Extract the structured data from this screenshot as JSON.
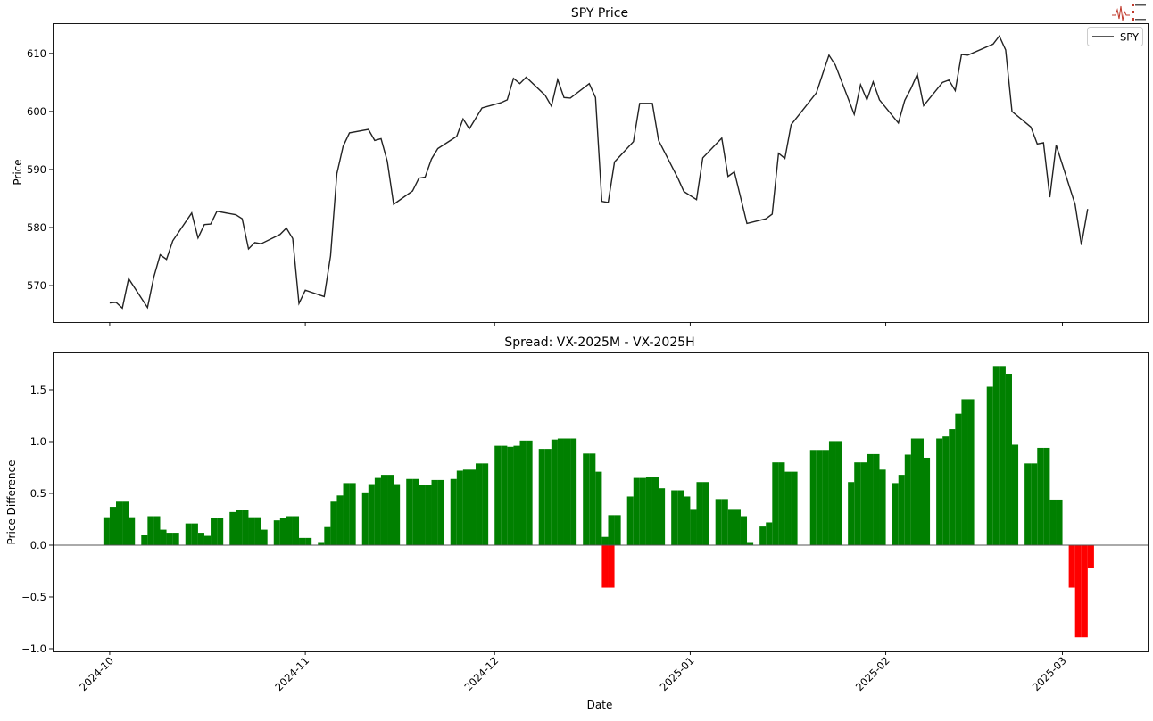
{
  "chart_data": [
    {
      "type": "line",
      "title": "SPY Price",
      "xlabel": "",
      "ylabel": "Price",
      "xlim": [
        "2024-09-21T23:00",
        "2025-03-14T12:00"
      ],
      "ylim": [
        563.7,
        615.2
      ],
      "yticks": [
        570,
        580,
        590,
        600,
        610
      ],
      "grid": false,
      "legend": {
        "position": "top-right",
        "entries": [
          "SPY"
        ]
      },
      "line_color": "#222222",
      "series": [
        {
          "name": "SPY",
          "points": [
            [
              "2024-10-01",
              567.0
            ],
            [
              "2024-10-02",
              567.1
            ],
            [
              "2024-10-03",
              566.1
            ],
            [
              "2024-10-04",
              571.2
            ],
            [
              "2024-10-07",
              566.2
            ],
            [
              "2024-10-08",
              571.5
            ],
            [
              "2024-10-09",
              575.3
            ],
            [
              "2024-10-10",
              574.5
            ],
            [
              "2024-10-11",
              577.7
            ],
            [
              "2024-10-14",
              582.5
            ],
            [
              "2024-10-15",
              578.2
            ],
            [
              "2024-10-16",
              580.5
            ],
            [
              "2024-10-17",
              580.6
            ],
            [
              "2024-10-18",
              582.8
            ],
            [
              "2024-10-21",
              582.2
            ],
            [
              "2024-10-22",
              581.5
            ],
            [
              "2024-10-23",
              576.3
            ],
            [
              "2024-10-24",
              577.4
            ],
            [
              "2024-10-25",
              577.2
            ],
            [
              "2024-10-28",
              578.8
            ],
            [
              "2024-10-29",
              579.9
            ],
            [
              "2024-10-30",
              578.1
            ],
            [
              "2024-10-31",
              566.9
            ],
            [
              "2024-11-01",
              569.2
            ],
            [
              "2024-11-04",
              568.1
            ],
            [
              "2024-11-05",
              575.1
            ],
            [
              "2024-11-06",
              589.3
            ],
            [
              "2024-11-07",
              594.0
            ],
            [
              "2024-11-08",
              596.3
            ],
            [
              "2024-11-11",
              596.9
            ],
            [
              "2024-11-12",
              595.0
            ],
            [
              "2024-11-13",
              595.3
            ],
            [
              "2024-11-14",
              591.4
            ],
            [
              "2024-11-15",
              584.0
            ],
            [
              "2024-11-18",
              586.3
            ],
            [
              "2024-11-19",
              588.5
            ],
            [
              "2024-11-20",
              588.7
            ],
            [
              "2024-11-21",
              591.8
            ],
            [
              "2024-11-22",
              593.6
            ],
            [
              "2024-11-25",
              595.7
            ],
            [
              "2024-11-26",
              598.7
            ],
            [
              "2024-11-27",
              597.0
            ],
            [
              "2024-11-29",
              600.6
            ],
            [
              "2024-12-02",
              601.5
            ],
            [
              "2024-12-03",
              602.0
            ],
            [
              "2024-12-04",
              605.7
            ],
            [
              "2024-12-05",
              604.8
            ],
            [
              "2024-12-06",
              605.9
            ],
            [
              "2024-12-09",
              602.8
            ],
            [
              "2024-12-10",
              600.9
            ],
            [
              "2024-12-11",
              605.5
            ],
            [
              "2024-12-12",
              602.4
            ],
            [
              "2024-12-13",
              602.3
            ],
            [
              "2024-12-16",
              604.8
            ],
            [
              "2024-12-17",
              602.4
            ],
            [
              "2024-12-18",
              584.5
            ],
            [
              "2024-12-19",
              584.3
            ],
            [
              "2024-12-20",
              591.3
            ],
            [
              "2024-12-23",
              594.8
            ],
            [
              "2024-12-24",
              601.4
            ],
            [
              "2024-12-26",
              601.4
            ],
            [
              "2024-12-27",
              595.0
            ],
            [
              "2024-12-30",
              588.6
            ],
            [
              "2024-12-31",
              586.2
            ],
            [
              "2025-01-02",
              584.8
            ],
            [
              "2025-01-03",
              592.0
            ],
            [
              "2025-01-06",
              595.4
            ],
            [
              "2025-01-07",
              588.8
            ],
            [
              "2025-01-08",
              589.6
            ],
            [
              "2025-01-10",
              580.7
            ],
            [
              "2025-01-13",
              581.5
            ],
            [
              "2025-01-14",
              582.3
            ],
            [
              "2025-01-15",
              592.8
            ],
            [
              "2025-01-16",
              591.9
            ],
            [
              "2025-01-17",
              597.7
            ],
            [
              "2025-01-21",
              603.2
            ],
            [
              "2025-01-22",
              606.5
            ],
            [
              "2025-01-23",
              609.7
            ],
            [
              "2025-01-24",
              608.0
            ],
            [
              "2025-01-27",
              599.5
            ],
            [
              "2025-01-28",
              604.6
            ],
            [
              "2025-01-29",
              602.0
            ],
            [
              "2025-01-30",
              605.1
            ],
            [
              "2025-01-31",
              602.0
            ],
            [
              "2025-02-03",
              598.0
            ],
            [
              "2025-02-04",
              601.9
            ],
            [
              "2025-02-05",
              604.0
            ],
            [
              "2025-02-06",
              606.4
            ],
            [
              "2025-02-07",
              601.0
            ],
            [
              "2025-02-10",
              605.0
            ],
            [
              "2025-02-11",
              605.4
            ],
            [
              "2025-02-12",
              603.6
            ],
            [
              "2025-02-13",
              609.8
            ],
            [
              "2025-02-14",
              609.7
            ],
            [
              "2025-02-18",
              611.6
            ],
            [
              "2025-02-19",
              613.0
            ],
            [
              "2025-02-20",
              610.6
            ],
            [
              "2025-02-21",
              600.0
            ],
            [
              "2025-02-24",
              597.3
            ],
            [
              "2025-02-25",
              594.4
            ],
            [
              "2025-02-26",
              594.6
            ],
            [
              "2025-02-27",
              585.2
            ],
            [
              "2025-02-28",
              594.2
            ],
            [
              "2025-03-03",
              584.0
            ],
            [
              "2025-03-04",
              577.0
            ],
            [
              "2025-03-05",
              583.2
            ]
          ]
        }
      ]
    },
    {
      "type": "bar",
      "title": "Spread: VX-2025M - VX-2025H",
      "xlabel": "Date",
      "ylabel": "Price Difference",
      "xlim": [
        "2024-09-21T23:00",
        "2025-03-14T12:00"
      ],
      "ylim": [
        -1.026,
        1.862
      ],
      "yticks": [
        -1.0,
        -0.5,
        0.0,
        0.5,
        1.0,
        1.5
      ],
      "yticklabels": [
        "−1.0",
        "−0.5",
        "0.0",
        "0.5",
        "1.0",
        "1.5"
      ],
      "xticks": [
        "2024-10-01",
        "2024-11-01",
        "2024-12-01",
        "2025-01-01",
        "2025-02-01",
        "2025-03-01"
      ],
      "xticklabels": [
        "2024-10",
        "2024-11",
        "2024-12",
        "2025-01",
        "2025-02",
        "2025-03"
      ],
      "grid": false,
      "positive_color": "#008000",
      "negative_color": "#ff0000",
      "bars": [
        [
          "2024-09-30",
          0.27
        ],
        [
          "2024-10-01",
          0.37
        ],
        [
          "2024-10-02",
          0.42
        ],
        [
          "2024-10-03",
          0.42
        ],
        [
          "2024-10-04",
          0.27
        ],
        [
          "2024-10-06",
          0.1
        ],
        [
          "2024-10-07",
          0.28
        ],
        [
          "2024-10-08",
          0.28
        ],
        [
          "2024-10-09",
          0.15
        ],
        [
          "2024-10-10",
          0.12
        ],
        [
          "2024-10-11",
          0.12
        ],
        [
          "2024-10-13",
          0.21
        ],
        [
          "2024-10-14",
          0.21
        ],
        [
          "2024-10-15",
          0.12
        ],
        [
          "2024-10-16",
          0.09
        ],
        [
          "2024-10-17",
          0.26
        ],
        [
          "2024-10-18",
          0.26
        ],
        [
          "2024-10-20",
          0.32
        ],
        [
          "2024-10-21",
          0.34
        ],
        [
          "2024-10-22",
          0.34
        ],
        [
          "2024-10-23",
          0.27
        ],
        [
          "2024-10-24",
          0.27
        ],
        [
          "2024-10-25",
          0.15
        ],
        [
          "2024-10-27",
          0.24
        ],
        [
          "2024-10-28",
          0.26
        ],
        [
          "2024-10-29",
          0.28
        ],
        [
          "2024-10-30",
          0.28
        ],
        [
          "2024-10-31",
          0.07
        ],
        [
          "2024-11-01",
          0.07
        ],
        [
          "2024-11-03",
          0.03
        ],
        [
          "2024-11-04",
          0.175
        ],
        [
          "2024-11-05",
          0.42
        ],
        [
          "2024-11-06",
          0.48
        ],
        [
          "2024-11-07",
          0.6
        ],
        [
          "2024-11-08",
          0.6
        ],
        [
          "2024-11-10",
          0.51
        ],
        [
          "2024-11-11",
          0.59
        ],
        [
          "2024-11-12",
          0.65
        ],
        [
          "2024-11-13",
          0.68
        ],
        [
          "2024-11-14",
          0.68
        ],
        [
          "2024-11-15",
          0.59
        ],
        [
          "2024-11-17",
          0.64
        ],
        [
          "2024-11-18",
          0.64
        ],
        [
          "2024-11-19",
          0.58
        ],
        [
          "2024-11-20",
          0.58
        ],
        [
          "2024-11-21",
          0.63
        ],
        [
          "2024-11-22",
          0.63
        ],
        [
          "2024-11-24",
          0.64
        ],
        [
          "2024-11-25",
          0.72
        ],
        [
          "2024-11-26",
          0.73
        ],
        [
          "2024-11-27",
          0.73
        ],
        [
          "2024-11-28",
          0.79
        ],
        [
          "2024-11-29",
          0.79
        ],
        [
          "2024-12-01",
          0.96
        ],
        [
          "2024-12-02",
          0.96
        ],
        [
          "2024-12-03",
          0.95
        ],
        [
          "2024-12-04",
          0.96
        ],
        [
          "2024-12-05",
          1.01
        ],
        [
          "2024-12-06",
          1.01
        ],
        [
          "2024-12-08",
          0.93
        ],
        [
          "2024-12-09",
          0.93
        ],
        [
          "2024-12-10",
          1.02
        ],
        [
          "2024-12-11",
          1.03
        ],
        [
          "2024-12-12",
          1.03
        ],
        [
          "2024-12-13",
          1.03
        ],
        [
          "2024-12-15",
          0.885
        ],
        [
          "2024-12-16",
          0.885
        ],
        [
          "2024-12-17",
          0.71
        ],
        [
          "2024-12-18",
          0.08
        ],
        [
          "2024-12-18",
          -0.41
        ],
        [
          "2024-12-19",
          -0.41
        ],
        [
          "2024-12-19",
          0.29
        ],
        [
          "2024-12-20",
          0.29
        ],
        [
          "2024-12-22",
          0.47
        ],
        [
          "2024-12-23",
          0.65
        ],
        [
          "2024-12-24",
          0.65
        ],
        [
          "2024-12-25",
          0.655
        ],
        [
          "2024-12-26",
          0.655
        ],
        [
          "2024-12-27",
          0.55
        ],
        [
          "2024-12-29",
          0.53
        ],
        [
          "2024-12-30",
          0.53
        ],
        [
          "2024-12-31",
          0.47
        ],
        [
          "2025-01-01",
          0.35
        ],
        [
          "2025-01-02",
          0.61
        ],
        [
          "2025-01-03",
          0.61
        ],
        [
          "2025-01-05",
          0.445
        ],
        [
          "2025-01-06",
          0.445
        ],
        [
          "2025-01-07",
          0.35
        ],
        [
          "2025-01-08",
          0.35
        ],
        [
          "2025-01-09",
          0.28
        ],
        [
          "2025-01-10",
          0.03
        ],
        [
          "2025-01-12",
          0.18
        ],
        [
          "2025-01-13",
          0.22
        ],
        [
          "2025-01-14",
          0.8
        ],
        [
          "2025-01-15",
          0.8
        ],
        [
          "2025-01-16",
          0.71
        ],
        [
          "2025-01-17",
          0.71
        ],
        [
          "2025-01-20",
          0.92
        ],
        [
          "2025-01-21",
          0.92
        ],
        [
          "2025-01-22",
          0.92
        ],
        [
          "2025-01-23",
          1.005
        ],
        [
          "2025-01-24",
          1.005
        ],
        [
          "2025-01-26",
          0.61
        ],
        [
          "2025-01-27",
          0.8
        ],
        [
          "2025-01-28",
          0.8
        ],
        [
          "2025-01-29",
          0.88
        ],
        [
          "2025-01-30",
          0.88
        ],
        [
          "2025-01-31",
          0.73
        ],
        [
          "2025-02-02",
          0.6
        ],
        [
          "2025-02-03",
          0.68
        ],
        [
          "2025-02-04",
          0.875
        ],
        [
          "2025-02-05",
          1.03
        ],
        [
          "2025-02-06",
          1.03
        ],
        [
          "2025-02-07",
          0.845
        ],
        [
          "2025-02-09",
          1.03
        ],
        [
          "2025-02-10",
          1.05
        ],
        [
          "2025-02-11",
          1.12
        ],
        [
          "2025-02-12",
          1.27
        ],
        [
          "2025-02-13",
          1.41
        ],
        [
          "2025-02-14",
          1.41
        ],
        [
          "2025-02-17",
          1.53
        ],
        [
          "2025-02-18",
          1.73
        ],
        [
          "2025-02-19",
          1.73
        ],
        [
          "2025-02-20",
          1.655
        ],
        [
          "2025-02-21",
          0.97
        ],
        [
          "2025-02-23",
          0.79
        ],
        [
          "2025-02-24",
          0.79
        ],
        [
          "2025-02-25",
          0.94
        ],
        [
          "2025-02-26",
          0.94
        ],
        [
          "2025-02-27",
          0.44
        ],
        [
          "2025-02-28",
          0.44
        ],
        [
          "2025-03-02",
          -0.41
        ],
        [
          "2025-03-03",
          -0.89
        ],
        [
          "2025-03-04",
          -0.89
        ],
        [
          "2025-03-05",
          -0.22
        ]
      ]
    }
  ]
}
